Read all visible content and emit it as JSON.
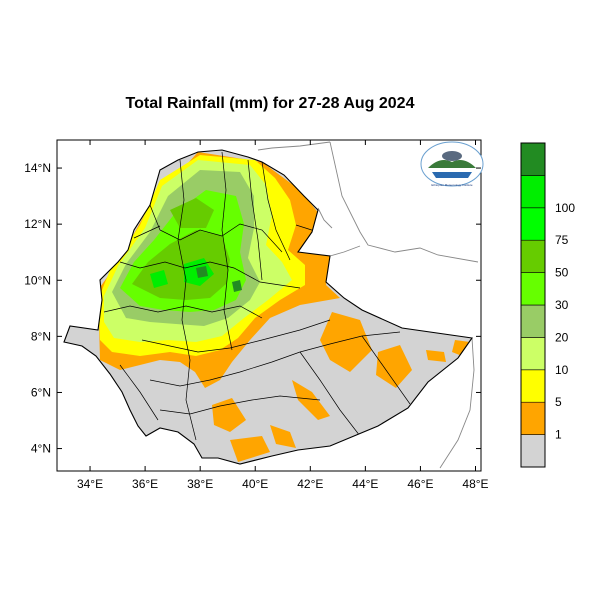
{
  "map": {
    "title": "Total Rainfall (mm) for 27-28 Aug 2024",
    "lat_ticks": [
      "4°N",
      "6°N",
      "8°N",
      "10°N",
      "12°N",
      "14°N"
    ],
    "lon_ticks": [
      "34°E",
      "36°E",
      "38°E",
      "40°E",
      "42°E",
      "44°E",
      "46°E",
      "48°E"
    ],
    "lon_range": [
      32.8,
      48.2
    ],
    "lat_range": [
      3.2,
      15.0
    ]
  },
  "legend": {
    "labels": [
      "1",
      "5",
      "10",
      "20",
      "30",
      "50",
      "75",
      "100"
    ],
    "colors": [
      "#d3d3d3",
      "#ffa500",
      "#ffff00",
      "#ccff66",
      "#99cc66",
      "#66ff00",
      "#66cc00",
      "#00ff00",
      "#00ee00",
      "#228b22"
    ]
  },
  "logo": {
    "icon": "national-meteorology-agency-logo",
    "text": "Ethiopian Meteorology Institute"
  }
}
